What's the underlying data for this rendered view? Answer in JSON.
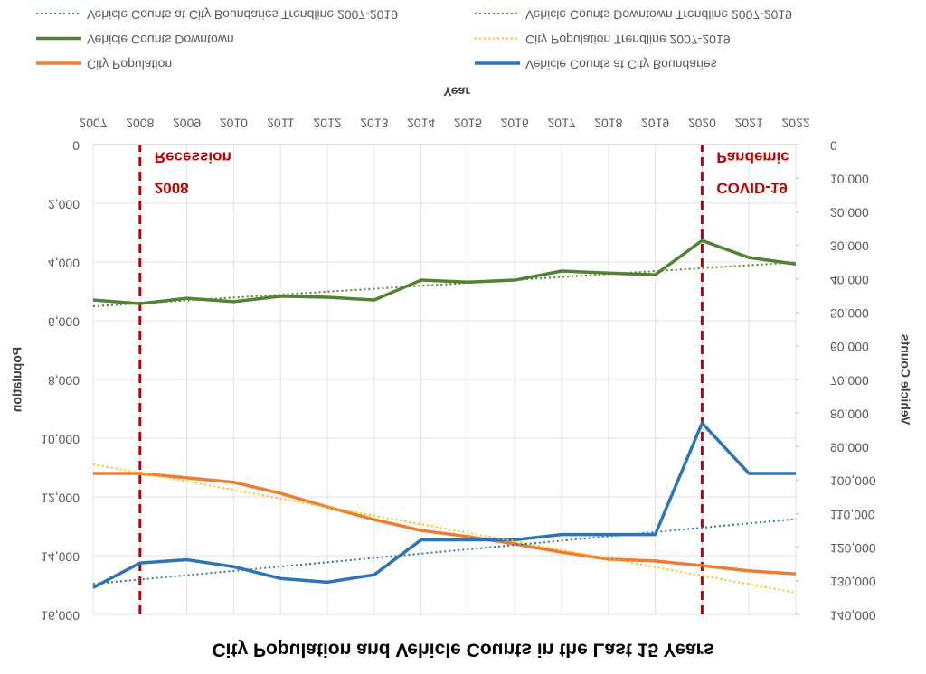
{
  "chart_data": {
    "type": "line",
    "title": "City Population and Vehicle Counts in the Last 15 Years",
    "x_label": "Year",
    "y_label": "Population",
    "y2_label": "Vehicle Counts",
    "x": [
      2007,
      2008,
      2009,
      2010,
      2011,
      2012,
      2013,
      2014,
      2015,
      2016,
      2017,
      2018,
      2019,
      2020,
      2021,
      2022
    ],
    "xlim": [
      2007,
      2022
    ],
    "xticks": [
      2007,
      2008,
      2009,
      2010,
      2011,
      2012,
      2013,
      2014,
      2015,
      2016,
      2017,
      2018,
      2019,
      2020,
      2021,
      2022
    ],
    "ylim": [
      0,
      16000
    ],
    "yticks": [
      0,
      {
        "value": 2000,
        "label": "2,000"
      },
      {
        "value": 4000,
        "label": "4,000"
      },
      {
        "value": 6000,
        "label": "6,000"
      },
      {
        "value": 8000,
        "label": "8,000"
      },
      {
        "value": 10000,
        "label": "10,000"
      },
      {
        "value": 12000,
        "label": "12,000"
      },
      {
        "value": 14000,
        "label": "14,000"
      },
      {
        "value": 16000,
        "label": "16,000"
      }
    ],
    "y2lim": [
      0,
      140000
    ],
    "y2ticks": [
      0,
      {
        "value": 10000,
        "label": "10,000"
      },
      {
        "value": 20000,
        "label": "20,000"
      },
      {
        "value": 30000,
        "label": "30,000"
      },
      {
        "value": 40000,
        "label": "40,000"
      },
      {
        "value": 50000,
        "label": "50,000"
      },
      {
        "value": 60000,
        "label": "60,000"
      },
      {
        "value": 70000,
        "label": "70,000"
      },
      {
        "value": 80000,
        "label": "80,000"
      },
      {
        "value": 90000,
        "label": "90,000"
      },
      {
        "value": 100000,
        "label": "100,000"
      },
      {
        "value": 110000,
        "label": "110,000"
      },
      {
        "value": 120000,
        "label": "120,000"
      },
      {
        "value": 130000,
        "label": "130,000"
      },
      {
        "value": 140000,
        "label": "140,000"
      }
    ],
    "grid": true,
    "legend": "bottom",
    "flipped": true,
    "series": [
      {
        "name": "City Population",
        "color": "#ed7d31",
        "axis": "y",
        "style": "solid",
        "values": [
          11200,
          11200,
          11350,
          11500,
          11880,
          12340,
          12770,
          13140,
          13350,
          13600,
          13880,
          14120,
          14180,
          14340,
          14520,
          14620
        ]
      },
      {
        "name": "Vehicle Counts at City Boundaries",
        "color": "#2e75b6",
        "axis": "y2",
        "style": "solid",
        "values": [
          132000,
          124700,
          123700,
          125800,
          129300,
          130400,
          128200,
          117800,
          117800,
          117800,
          116200,
          116200,
          116200,
          83000,
          98000,
          98000
        ]
      },
      {
        "name": "Vehicle Counts Downtown",
        "color": "#548235",
        "axis": "y2",
        "style": "solid",
        "values": [
          46300,
          47400,
          45800,
          46800,
          45200,
          45500,
          46300,
          40400,
          41000,
          40400,
          37700,
          38300,
          38800,
          28600,
          33700,
          35600
        ]
      },
      {
        "name": "City Population Trendline 2007-2019",
        "color": "#ffc000",
        "axis": "y",
        "style": "dotted",
        "values": [
          10890,
          11180,
          11470,
          11760,
          12060,
          12350,
          12640,
          12930,
          13220,
          13510,
          13800,
          14100,
          14390,
          14680,
          14970,
          15260
        ]
      },
      {
        "name": "Vehicle Counts at City Boundaries Trendline 2007-2019",
        "color": "#2e75b6",
        "axis": "y2",
        "style": "dotted",
        "values": [
          130900,
          129610,
          128330,
          127040,
          125750,
          124470,
          123180,
          121890,
          120610,
          119320,
          118030,
          116750,
          115460,
          114170,
          112890,
          111600
        ]
      },
      {
        "name": "Vehicle Counts Downtown Trendline 2007-2019",
        "color": "#548235",
        "axis": "y2",
        "style": "dotted",
        "values": [
          48200,
          47330,
          46450,
          45580,
          44710,
          43830,
          42960,
          42090,
          41210,
          40340,
          39470,
          38590,
          37720,
          36850,
          35970,
          35100
        ]
      }
    ],
    "annotations": [
      {
        "x": 2008,
        "color": "#c00000",
        "lines": [
          "2008",
          "Recession"
        ]
      },
      {
        "x": 2020,
        "color": "#c00000",
        "lines": [
          "COVID-19",
          "Pandemic"
        ]
      }
    ]
  }
}
